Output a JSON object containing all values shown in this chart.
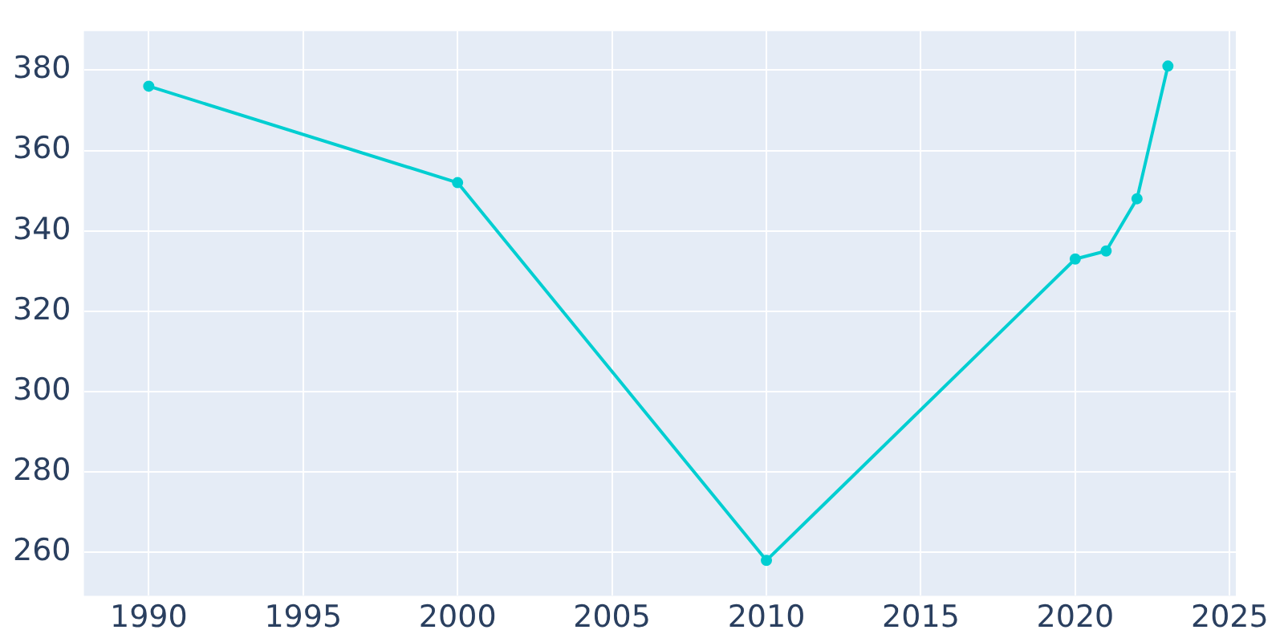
{
  "chart_data": {
    "type": "line",
    "x": [
      1990,
      2000,
      2010,
      2020,
      2021,
      2022,
      2023
    ],
    "series": [
      {
        "color": "#00ced1",
        "values": [
          376,
          352,
          258,
          333,
          335,
          348,
          381
        ]
      }
    ],
    "xlim": [
      1987.9,
      2025.2
    ],
    "xticks": [
      1990,
      1995,
      2000,
      2005,
      2010,
      2015,
      2020,
      2025
    ],
    "ylim": [
      249.2,
      389.7
    ],
    "yticks": [
      260,
      280,
      300,
      320,
      340,
      360,
      380
    ],
    "grid": true,
    "legend": false,
    "marker": "circle",
    "line_style": "solid"
  }
}
